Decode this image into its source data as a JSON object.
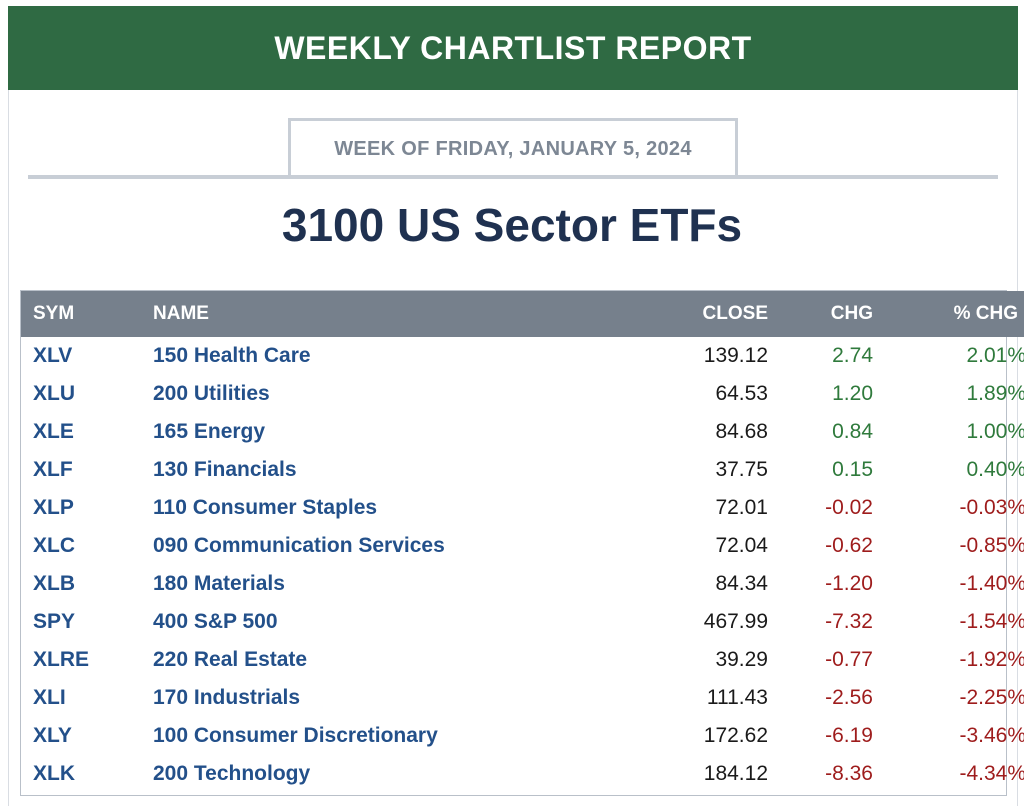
{
  "banner": {
    "title": "WEEKLY CHARTLIST REPORT"
  },
  "week": {
    "label": "WEEK OF FRIDAY, JANUARY 5, 2024"
  },
  "title": "3100 US Sector ETFs",
  "table": {
    "headers": {
      "sym": "SYM",
      "name": "NAME",
      "close": "CLOSE",
      "chg": "CHG",
      "pct": "% CHG"
    },
    "colors": {
      "positive": "#2f7a3c",
      "negative": "#9e1c1c",
      "link": "#23508a",
      "header_bg": "#76808c"
    },
    "rows": [
      {
        "sym": "XLV",
        "name": "150 Health Care",
        "close": "139.12",
        "chg": "2.74",
        "pct": "2.01%",
        "dir": "pos"
      },
      {
        "sym": "XLU",
        "name": "200 Utilities",
        "close": "64.53",
        "chg": "1.20",
        "pct": "1.89%",
        "dir": "pos"
      },
      {
        "sym": "XLE",
        "name": "165 Energy",
        "close": "84.68",
        "chg": "0.84",
        "pct": "1.00%",
        "dir": "pos"
      },
      {
        "sym": "XLF",
        "name": "130 Financials",
        "close": "37.75",
        "chg": "0.15",
        "pct": "0.40%",
        "dir": "pos"
      },
      {
        "sym": "XLP",
        "name": "110 Consumer Staples",
        "close": "72.01",
        "chg": "-0.02",
        "pct": "-0.03%",
        "dir": "neg"
      },
      {
        "sym": "XLC",
        "name": "090 Communication Services",
        "close": "72.04",
        "chg": "-0.62",
        "pct": "-0.85%",
        "dir": "neg"
      },
      {
        "sym": "XLB",
        "name": "180 Materials",
        "close": "84.34",
        "chg": "-1.20",
        "pct": "-1.40%",
        "dir": "neg"
      },
      {
        "sym": "SPY",
        "name": "400 S&P 500",
        "close": "467.99",
        "chg": "-7.32",
        "pct": "-1.54%",
        "dir": "neg"
      },
      {
        "sym": "XLRE",
        "name": "220 Real Estate",
        "close": "39.29",
        "chg": "-0.77",
        "pct": "-1.92%",
        "dir": "neg"
      },
      {
        "sym": "XLI",
        "name": "170 Industrials",
        "close": "111.43",
        "chg": "-2.56",
        "pct": "-2.25%",
        "dir": "neg"
      },
      {
        "sym": "XLY",
        "name": "100 Consumer Discretionary",
        "close": "172.62",
        "chg": "-6.19",
        "pct": "-3.46%",
        "dir": "neg"
      },
      {
        "sym": "XLK",
        "name": "200 Technology",
        "close": "184.12",
        "chg": "-8.36",
        "pct": "-4.34%",
        "dir": "neg"
      }
    ]
  }
}
